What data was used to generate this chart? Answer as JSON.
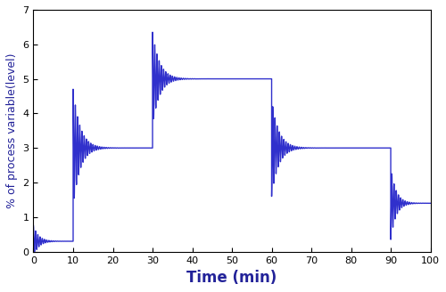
{
  "line_color": "#3030cc",
  "line_width": 1.0,
  "xlabel": "Time (min)",
  "ylabel": "% of process variable(level)",
  "xlim": [
    0,
    100
  ],
  "ylim": [
    0,
    7
  ],
  "xticks": [
    0,
    10,
    20,
    30,
    40,
    50,
    60,
    70,
    80,
    90,
    100
  ],
  "yticks": [
    0,
    1,
    2,
    3,
    4,
    5,
    6,
    7
  ],
  "xlabel_fontsize": 12,
  "ylabel_fontsize": 9,
  "tick_fontsize": 8,
  "background_color": "#ffffff",
  "segments": [
    {
      "t_start": 0,
      "t_end": 10,
      "settle_val": 0.3,
      "peak": 0.75,
      "decay": 0.12,
      "freq": 1.8,
      "n_pts": 600
    },
    {
      "t_start": 10,
      "t_end": 30,
      "settle_val": 3.0,
      "peak": 4.7,
      "decay": 0.09,
      "freq": 1.8,
      "n_pts": 1200
    },
    {
      "t_start": 30,
      "t_end": 60,
      "settle_val": 5.0,
      "peak": 6.35,
      "decay": 0.09,
      "freq": 1.8,
      "n_pts": 1800
    },
    {
      "t_start": 60,
      "t_end": 90,
      "settle_val": 3.0,
      "peak": 1.6,
      "decay": 0.09,
      "freq": 1.8,
      "n_pts": 1800
    },
    {
      "t_start": 90,
      "t_end": 100,
      "settle_val": 1.4,
      "peak": 0.35,
      "decay": 0.12,
      "freq": 1.8,
      "n_pts": 600
    }
  ]
}
